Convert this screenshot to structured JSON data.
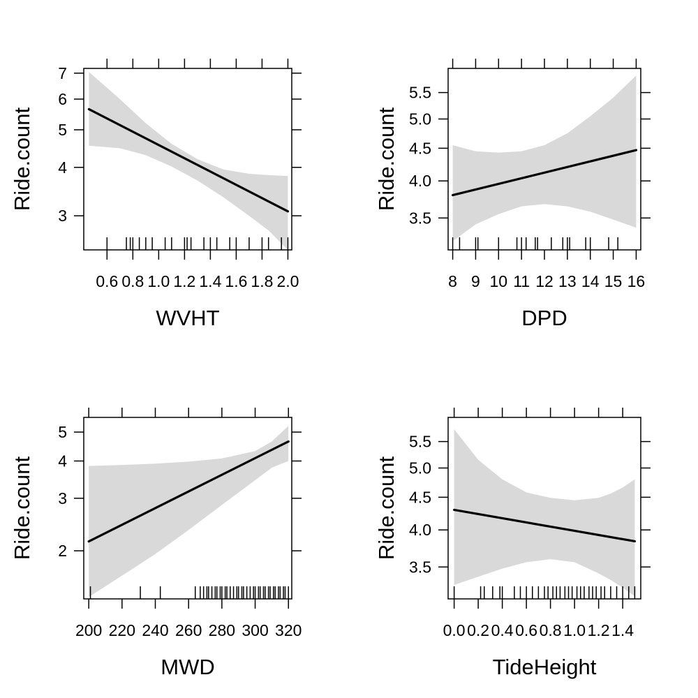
{
  "colors": {
    "band": "#d9d9d9",
    "line": "#000000",
    "frame": "#000000"
  },
  "chart_data": [
    {
      "type": "line",
      "xlabel": "WVHT",
      "ylabel": "Ride.count",
      "log_y": true,
      "grid": false,
      "xlim": [
        0.42,
        2.03
      ],
      "ylim": [
        2.45,
        7.2
      ],
      "x_ticks": [
        0.6,
        0.8,
        1.0,
        1.2,
        1.4,
        1.6,
        1.8,
        2.0
      ],
      "x_tick_labels": [
        "0.6",
        "0.8",
        "1.0",
        "1.2",
        "1.4",
        "1.6",
        "1.8",
        "2.0"
      ],
      "y_ticks": [
        3,
        4,
        5,
        6,
        7
      ],
      "y_tick_labels": [
        "3",
        "4",
        "5",
        "6",
        "7"
      ],
      "fit": {
        "x": [
          0.46,
          2.0
        ],
        "y": [
          5.65,
          3.08
        ]
      },
      "band": {
        "x": [
          0.46,
          0.7,
          0.9,
          1.1,
          1.3,
          1.5,
          1.7,
          1.85,
          2.0
        ],
        "lower": [
          4.55,
          4.48,
          4.3,
          4.02,
          3.7,
          3.35,
          3.0,
          2.75,
          2.45
        ],
        "upper": [
          7.05,
          6.0,
          5.2,
          4.6,
          4.2,
          3.95,
          3.85,
          3.82,
          3.8
        ]
      },
      "rug": [
        0.6,
        0.75,
        0.78,
        0.8,
        0.85,
        0.9,
        0.95,
        1.05,
        1.1,
        1.2,
        1.22,
        1.25,
        1.35,
        1.4,
        1.45,
        1.55,
        1.6,
        1.7,
        1.8,
        1.85,
        1.95,
        2.0
      ]
    },
    {
      "type": "line",
      "xlabel": "DPD",
      "ylabel": "Ride.count",
      "log_y": true,
      "grid": false,
      "xlim": [
        7.8,
        16.2
      ],
      "ylim": [
        3.12,
        6.0
      ],
      "x_ticks": [
        8,
        9,
        10,
        11,
        12,
        13,
        14,
        15,
        16
      ],
      "x_tick_labels": [
        "8",
        "9",
        "10",
        "11",
        "12",
        "13",
        "14",
        "15",
        "16"
      ],
      "y_ticks": [
        3.5,
        4.0,
        4.5,
        5.0,
        5.5
      ],
      "y_tick_labels": [
        "3.5",
        "4.0",
        "4.5",
        "5.0",
        "5.5"
      ],
      "fit": {
        "x": [
          8,
          16
        ],
        "y": [
          3.8,
          4.47
        ]
      },
      "band": {
        "x": [
          8,
          9,
          10,
          11,
          12,
          13,
          14,
          15,
          16
        ],
        "lower": [
          3.22,
          3.42,
          3.55,
          3.65,
          3.68,
          3.65,
          3.58,
          3.48,
          3.38
        ],
        "upper": [
          4.55,
          4.45,
          4.43,
          4.45,
          4.55,
          4.75,
          5.05,
          5.4,
          5.85
        ]
      },
      "rug": [
        8,
        8.3,
        9,
        9.1,
        10,
        10.8,
        11,
        11.2,
        11.6,
        11.7,
        12.3,
        12.8,
        13,
        13.1,
        13.8,
        14,
        14.8,
        15.2
      ]
    },
    {
      "type": "line",
      "xlabel": "MWD",
      "ylabel": "Ride.count",
      "log_y": true,
      "grid": false,
      "xlim": [
        197,
        322
      ],
      "ylim": [
        1.38,
        5.6
      ],
      "x_ticks": [
        200,
        220,
        240,
        260,
        280,
        300,
        320
      ],
      "x_tick_labels": [
        "200",
        "220",
        "240",
        "260",
        "280",
        "300",
        "320"
      ],
      "y_ticks": [
        2,
        3,
        4,
        5
      ],
      "y_tick_labels": [
        "2",
        "3",
        "4",
        "5"
      ],
      "fit": {
        "x": [
          200,
          320
        ],
        "y": [
          2.15,
          4.65
        ]
      },
      "band": {
        "x": [
          200,
          220,
          240,
          260,
          280,
          300,
          310,
          320
        ],
        "lower": [
          1.4,
          1.65,
          1.95,
          2.35,
          2.85,
          3.45,
          3.8,
          4.0
        ],
        "upper": [
          3.85,
          3.88,
          3.92,
          3.98,
          4.08,
          4.32,
          4.65,
          5.25
        ]
      },
      "rug": [
        201,
        231,
        243,
        264,
        267,
        269,
        271,
        272,
        274,
        276,
        277,
        279,
        280,
        282,
        283,
        285,
        287,
        289,
        290,
        292,
        293,
        295,
        297,
        299,
        300,
        302,
        303,
        305,
        306,
        308,
        309,
        311,
        312,
        314,
        315,
        317,
        318,
        320
      ]
    },
    {
      "type": "line",
      "xlabel": "TideHeight",
      "ylabel": "Ride.count",
      "log_y": true,
      "grid": false,
      "xlim": [
        -0.05,
        1.55
      ],
      "ylim": [
        3.12,
        6.0
      ],
      "x_ticks": [
        0.0,
        0.2,
        0.4,
        0.6,
        0.8,
        1.0,
        1.2,
        1.4
      ],
      "x_tick_labels": [
        "0.0",
        "0.2",
        "0.4",
        "0.6",
        "0.8",
        "1.0",
        "1.2",
        "1.4"
      ],
      "y_ticks": [
        3.5,
        4.0,
        4.5,
        5.0,
        5.5
      ],
      "y_tick_labels": [
        "3.5",
        "4.0",
        "4.5",
        "5.0",
        "5.5"
      ],
      "fit": {
        "x": [
          0.0,
          1.5
        ],
        "y": [
          4.3,
          3.84
        ]
      },
      "band": {
        "x": [
          0.0,
          0.2,
          0.4,
          0.6,
          0.8,
          1.0,
          1.2,
          1.3,
          1.4,
          1.5
        ],
        "lower": [
          3.28,
          3.38,
          3.48,
          3.56,
          3.6,
          3.56,
          3.42,
          3.34,
          3.25,
          3.15
        ],
        "upper": [
          5.75,
          5.15,
          4.8,
          4.58,
          4.49,
          4.45,
          4.49,
          4.56,
          4.66,
          4.8
        ]
      },
      "rug": [
        0.0,
        0.22,
        0.25,
        0.32,
        0.38,
        0.4,
        0.5,
        0.55,
        0.6,
        0.65,
        0.7,
        0.75,
        0.78,
        0.82,
        0.85,
        0.88,
        0.92,
        0.95,
        0.98,
        1.02,
        1.05,
        1.08,
        1.12,
        1.15,
        1.18,
        1.22,
        1.25,
        1.3,
        1.35,
        1.4,
        1.45,
        1.5
      ]
    }
  ]
}
